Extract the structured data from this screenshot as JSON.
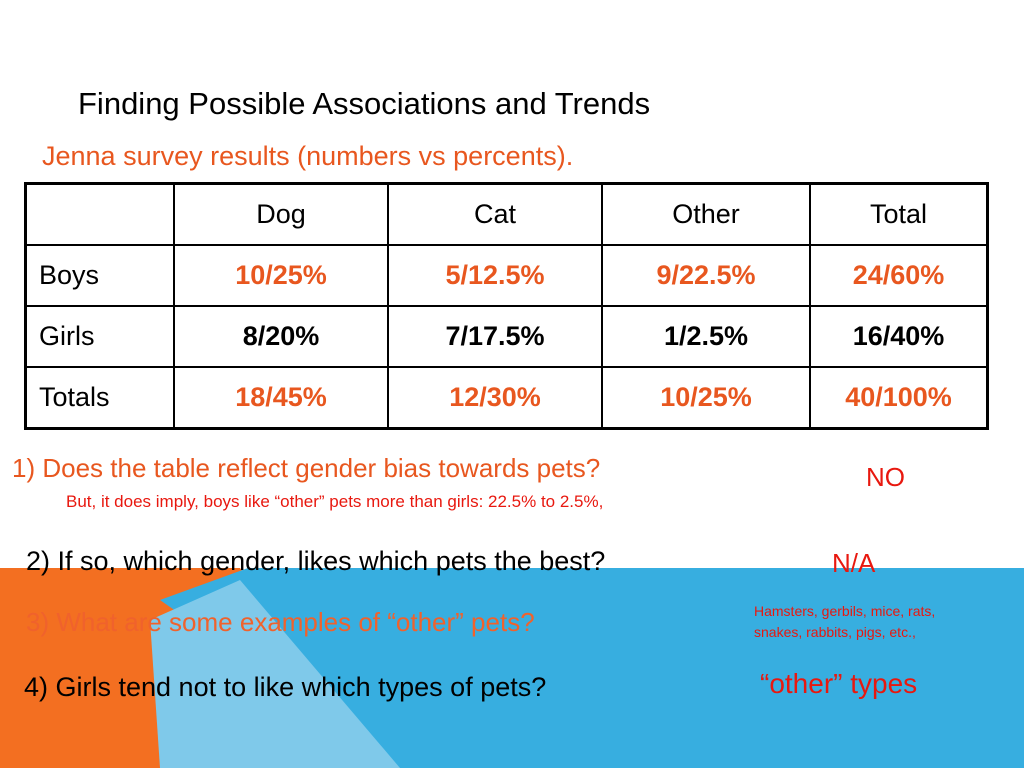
{
  "slide": {
    "title": "Finding Possible Associations and Trends",
    "subtitle": "Jenna survey results (numbers vs percents)."
  },
  "table": {
    "headers": [
      "",
      "Dog",
      "Cat",
      "Other",
      "Total"
    ],
    "rows": [
      {
        "label": "Boys",
        "cells": [
          "10/25%",
          "5/12.5%",
          "9/22.5%",
          "24/60%"
        ]
      },
      {
        "label": "Girls",
        "cells": [
          "8/20%",
          "7/17.5%",
          "1/2.5%",
          "16/40%"
        ]
      },
      {
        "label": "Totals",
        "cells": [
          "18/45%",
          "12/30%",
          "10/25%",
          "40/100%"
        ]
      }
    ]
  },
  "questions": {
    "q1": "1) Does the table reflect gender bias towards pets?",
    "a1": "NO",
    "q1_note": "But, it does imply, boys like “other” pets more than girls:    22.5% to 2.5%,",
    "q2": "2) If so, which gender, likes which pets the best?",
    "a2": "N/A",
    "q3": "3) What are some examples of “other” pets?",
    "a3_line1": "Hamsters, gerbils, mice, rats,",
    "a3_line2": "snakes, rabbits, pigs, etc.,",
    "q4": "4) Girls tend not to like which types of pets?",
    "a4": "“other”  types"
  },
  "colors": {
    "accent_orange": "#e8571f",
    "answer_red": "#e8180f",
    "shape_orange": "#f36f21",
    "shape_blue": "#37aee0",
    "shape_light_blue": "#7fc9ea"
  }
}
